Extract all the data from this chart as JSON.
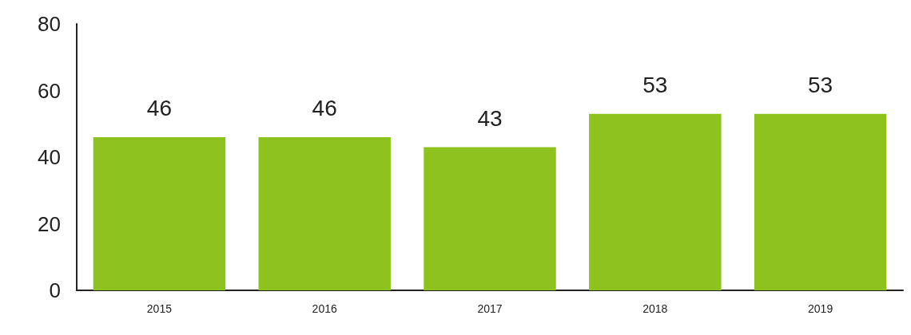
{
  "chart_data": {
    "type": "bar",
    "categories": [
      "2015",
      "2016",
      "2017",
      "2018",
      "2019"
    ],
    "values": [
      46,
      46,
      43,
      53,
      53
    ],
    "color": "#8dc21f",
    "ylim": [
      0,
      80
    ],
    "yticks": [
      0,
      20,
      40,
      60,
      80
    ],
    "grid": false,
    "data_labels": true
  }
}
